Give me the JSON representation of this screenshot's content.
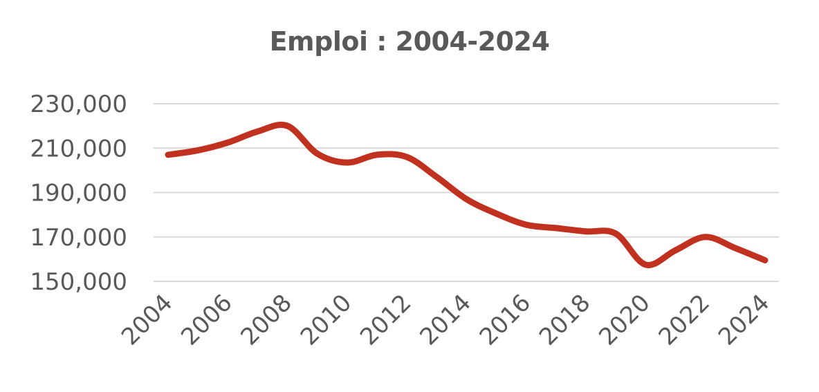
{
  "chart_data": {
    "type": "line",
    "title": "Emploi : 2004-2024",
    "xlabel": "",
    "ylabel": "",
    "x": [
      2004,
      2005,
      2006,
      2007,
      2008,
      2009,
      2010,
      2011,
      2012,
      2013,
      2014,
      2015,
      2016,
      2017,
      2018,
      2019,
      2020,
      2021,
      2022,
      2023,
      2024
    ],
    "x_tick_labels": [
      "2004",
      "2006",
      "2008",
      "2010",
      "2012",
      "2014",
      "2016",
      "2018",
      "2020",
      "2022",
      "2024"
    ],
    "ylim": [
      150000,
      230000
    ],
    "y_tick_labels": [
      "150,000",
      "170,000",
      "190,000",
      "210,000",
      "230,000"
    ],
    "y_ticks": [
      150000,
      170000,
      190000,
      210000,
      230000
    ],
    "grid": true,
    "legend": "none",
    "series": [
      {
        "color": "#c0321f",
        "values": [
          207000,
          209000,
          212500,
          217500,
          220000,
          207500,
          203500,
          207000,
          206000,
          197000,
          187000,
          180500,
          175500,
          174000,
          172500,
          171500,
          157500,
          164000,
          170000,
          165000,
          159500
        ]
      }
    ]
  }
}
